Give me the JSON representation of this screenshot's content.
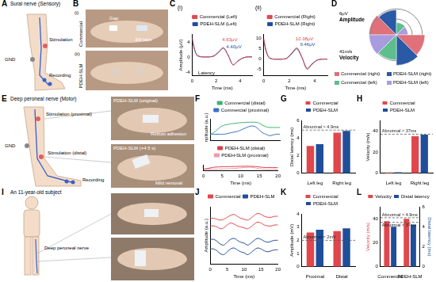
{
  "chart_data": [
    {
      "type": "line",
      "panel": "C",
      "title": "(i)",
      "x": [
        0,
        0.2,
        0.4,
        0.6,
        0.8,
        1.0,
        1.4,
        1.8,
        2.2,
        2.6,
        3.0,
        3.4,
        3.8,
        4.2,
        4.6,
        5.0
      ],
      "series": [
        {
          "name": "Commercial (Left)",
          "color": "#e0474c",
          "values": [
            5,
            2,
            0.5,
            0.2,
            0,
            0,
            0,
            0.3,
            1.4,
            2.5,
            0.5,
            -2.1,
            -1.2,
            -0.3,
            0,
            0
          ]
        },
        {
          "name": "PDEH-SLM (Left)",
          "color": "#1f4e9a",
          "values": [
            4.5,
            1.8,
            0.4,
            0.1,
            0,
            0,
            0,
            0.2,
            1.2,
            2.3,
            0.4,
            -2.1,
            -1.1,
            -0.3,
            0,
            0
          ]
        }
      ],
      "xlim": [
        0,
        5
      ],
      "xticks": [
        0,
        2,
        4
      ],
      "ylim": [
        -5,
        6
      ],
      "yticks": [
        -4,
        0,
        4
      ],
      "x_label": "Time (ms)",
      "y_label": "Amplitude (μV)",
      "annotations": [
        "4.63μV",
        "4.40μV",
        "Latency"
      ],
      "legend": "top",
      "grid": false
    },
    {
      "type": "line",
      "panel": "C",
      "title": "(ii)",
      "x": [
        0,
        0.2,
        0.4,
        0.6,
        0.8,
        1.0,
        1.4,
        1.8,
        2.2,
        2.6,
        3.0,
        3.4,
        3.8,
        4.2,
        4.6,
        5.0
      ],
      "series": [
        {
          "name": "Commercial (Right)",
          "color": "#e0474c",
          "values": [
            10,
            4,
            1,
            0.3,
            0,
            0,
            0,
            0.5,
            3,
            5.5,
            1,
            -4.9,
            -2.5,
            -0.5,
            0,
            0
          ]
        },
        {
          "name": "PDEH-SLM (Right)",
          "color": "#1f4e9a",
          "values": [
            9,
            3.5,
            0.8,
            0.2,
            0,
            0,
            0,
            0.4,
            2.6,
            5,
            0.8,
            -4.4,
            -2.2,
            -0.4,
            0,
            0
          ]
        }
      ],
      "xlim": [
        0,
        5
      ],
      "xticks": [
        0,
        2,
        4
      ],
      "ylim": [
        -8,
        12
      ],
      "yticks": [
        -5,
        0,
        5,
        10
      ],
      "x_label": "Time (ms)",
      "annotations": [
        "10.38μV",
        "9.46μV"
      ],
      "legend": "top",
      "grid": false
    },
    {
      "type": "polarArea",
      "panel": "D",
      "categories": [
        "Amplitude",
        "Velocity"
      ],
      "series": [
        {
          "name": "Commercial (right)",
          "color": "#e0707a",
          "values": [
            10.38,
            45
          ]
        },
        {
          "name": "PDEH-SLM (right)",
          "color": "#2a5aa6",
          "values": [
            9.46,
            48
          ]
        },
        {
          "name": "Commercial (left)",
          "color": "#5cbf8c",
          "values": [
            4.63,
            40
          ]
        },
        {
          "name": "PDEH-SLM (left)",
          "color": "#a89be0",
          "values": [
            4.4,
            43
          ]
        }
      ],
      "rlim": [
        0,
        12
      ],
      "rticks": [
        {
          "value": 6,
          "label": "6μV"
        }
      ],
      "r2lim": [
        0,
        50
      ],
      "r2ticks": [
        {
          "value": 41,
          "label": "41m/s"
        }
      ],
      "legend": "bottom"
    },
    {
      "type": "line",
      "panel": "F",
      "x": [
        0,
        1,
        2,
        3,
        4,
        5,
        6,
        7,
        8,
        9,
        10,
        11,
        12,
        13,
        14,
        15,
        16,
        17,
        18,
        19,
        20
      ],
      "series": [
        {
          "name": "Commercial (distal)",
          "color": "#3cb371",
          "values": [
            0,
            0.1,
            0.3,
            0.5,
            0.6,
            0.65,
            0.7,
            0.72,
            0.75,
            0.77,
            0.78,
            0.8,
            0.8,
            0.8,
            0.75,
            0.6,
            0.5,
            0.45,
            0.45,
            0.45,
            0.45
          ]
        },
        {
          "name": "Commercial (proximal)",
          "color": "#3b6fc4",
          "values": [
            0,
            0,
            0,
            0,
            0,
            0.05,
            0.1,
            0.15,
            0.2,
            0.3,
            0.4,
            0.5,
            0.55,
            0.5,
            0.3,
            0.1,
            0,
            -0.1,
            -0.05,
            0,
            0
          ]
        }
      ],
      "xlim": [
        0,
        20
      ],
      "ylim": [
        -0.4,
        1.0
      ],
      "y_label": "Amplitude (a.u.)",
      "tick_labels": false,
      "legend": "top",
      "grid": false
    },
    {
      "type": "line",
      "panel": "F",
      "x": [
        0,
        1,
        2,
        3,
        4,
        5,
        6,
        7,
        8,
        9,
        10,
        11,
        12,
        13,
        14,
        15,
        16,
        17,
        18,
        19,
        20
      ],
      "series": [
        {
          "name": "PDEH-SLM (distal)",
          "color": "#d6404a",
          "values": [
            0,
            0.15,
            0.35,
            0.5,
            0.55,
            0.6,
            0.62,
            0.64,
            0.66,
            0.68,
            0.7,
            0.72,
            0.72,
            0.7,
            0.65,
            0.55,
            0.45,
            0.4,
            0.4,
            0.4,
            0.4
          ]
        },
        {
          "name": "PDEH-SLM (proximal)",
          "color": "#f29aa8",
          "values": [
            0,
            0,
            0,
            0,
            0.02,
            0.05,
            0.08,
            0.12,
            0.18,
            0.25,
            0.33,
            0.42,
            0.48,
            0.45,
            0.3,
            0.12,
            0.02,
            -0.08,
            -0.04,
            0,
            0
          ]
        }
      ],
      "xlim": [
        0,
        20
      ],
      "xticks": [
        0,
        5,
        10,
        15,
        20
      ],
      "ylim": [
        -0.4,
        1.0
      ],
      "x_label": "Time (ms)",
      "tick_labels": "x",
      "legend": "top",
      "grid": false
    },
    {
      "type": "bar",
      "panel": "G",
      "categories": [
        "Left leg",
        "Right leg"
      ],
      "series": [
        {
          "name": "Commercial",
          "color": "#e0474c",
          "values": [
            3.1,
            4.6
          ]
        },
        {
          "name": "PDEH-SLM",
          "color": "#1f4e9a",
          "values": [
            3.3,
            4.8
          ]
        }
      ],
      "ylim": [
        0,
        6
      ],
      "yticks": [
        0,
        2,
        4,
        6
      ],
      "y_label": "Distal latency (ms)",
      "thresholds": [
        {
          "value": 4.9,
          "label": "Abnormal > 4.9ms"
        }
      ],
      "legend": "top",
      "grid": false
    },
    {
      "type": "bar",
      "panel": "H",
      "categories": [
        "Left leg",
        "Right leg"
      ],
      "series": [
        {
          "name": "Commercial",
          "color": "#e0474c",
          "values": [
            0.8,
            35
          ]
        },
        {
          "name": "PDEH-SLM",
          "color": "#1f4e9a",
          "values": [
            1.0,
            36.5
          ]
        }
      ],
      "ylim": [
        0,
        50
      ],
      "yticks": [
        0,
        20,
        40
      ],
      "y_label": "Velocity (m/s)",
      "thresholds": [
        {
          "value": 37,
          "label": "Abnormal < 37ms"
        }
      ],
      "legend": "top",
      "grid": false
    },
    {
      "type": "line",
      "panel": "J",
      "x": [
        0,
        1,
        2,
        3,
        4,
        5,
        6,
        7,
        8,
        9,
        10,
        11,
        12,
        13,
        14,
        15,
        16,
        17,
        18,
        19,
        20
      ],
      "series": [
        {
          "name": "Commercial",
          "color": "#e0474c",
          "values": [
            0.9,
            0.9,
            0.85,
            0.8,
            0.85,
            0.95,
            1.05,
            1.1,
            1.0,
            0.9,
            0.85,
            0.8,
            0.9,
            1.05,
            1.15,
            1.1,
            1.0,
            0.95,
            0.95,
            1.0,
            1.0
          ]
        },
        {
          "color": "#e0474c",
          "values": [
            0.5,
            0.5,
            0.45,
            0.35,
            0.4,
            0.55,
            0.65,
            0.6,
            0.5,
            0.45,
            0.4,
            0.35,
            0.45,
            0.6,
            0.7,
            0.65,
            0.55,
            0.5,
            0.5,
            0.55,
            0.55
          ]
        },
        {
          "name": "PDEH-SLM",
          "color": "#1f4e9a",
          "values": [
            -0.2,
            -0.2,
            -0.3,
            -0.45,
            -0.5,
            -0.35,
            -0.2,
            -0.15,
            -0.25,
            -0.35,
            -0.4,
            -0.5,
            -0.4,
            -0.25,
            -0.15,
            -0.2,
            -0.3,
            -0.35,
            -0.3,
            -0.25,
            -0.25
          ]
        },
        {
          "color": "#1f4e9a",
          "values": [
            -0.7,
            -0.7,
            -0.8,
            -0.95,
            -1.0,
            -0.85,
            -0.7,
            -0.65,
            -0.75,
            -0.85,
            -0.9,
            -1.0,
            -0.9,
            -0.75,
            -0.65,
            -0.7,
            -0.8,
            -0.85,
            -0.8,
            -0.75,
            -0.75
          ]
        }
      ],
      "xlim": [
        0,
        20
      ],
      "xticks": [
        0,
        5,
        10,
        15,
        20
      ],
      "ylim": [
        -1.5,
        1.5
      ],
      "x_label": "Time (ms)",
      "y_label": "Amplitude (a.u.)",
      "tick_labels": "x",
      "legend": "top",
      "grid": false
    },
    {
      "type": "bar",
      "panel": "K",
      "categories": [
        "Proximal",
        "Distal"
      ],
      "series": [
        {
          "name": "Commercial",
          "color": "#e0474c",
          "values": [
            2.6,
            2.7
          ]
        },
        {
          "name": "PDEH-SLM",
          "color": "#1f4e9a",
          "values": [
            2.8,
            2.9
          ]
        }
      ],
      "ylim": [
        0,
        4
      ],
      "yticks": [
        0,
        1,
        2,
        3,
        4
      ],
      "y_label": "Amplitude (mV)",
      "thresholds": [
        {
          "value": 2,
          "label": "Abnormal < 2mV"
        }
      ],
      "legend": "top",
      "grid": false
    },
    {
      "type": "bar",
      "panel": "L",
      "categories": [
        "Commercial",
        "PDEH-SLM"
      ],
      "series": [
        {
          "name": "Velocity",
          "color": "#e0474c",
          "values": [
            38,
            40
          ]
        },
        {
          "name": "Distal latency",
          "color": "#1f4e9a",
          "values": [
            4.0,
            4.2
          ],
          "axis": "y2"
        }
      ],
      "ylim": [
        0,
        50
      ],
      "yticks": [
        0,
        20,
        40
      ],
      "y_label": "Velocity (m/s)",
      "y2lim": [
        0,
        6
      ],
      "y2ticks": [
        0,
        2,
        4,
        6
      ],
      "y2_label": "Distal latency (ms)",
      "thresholds": [
        {
          "value": 4.9,
          "label": "Abnormal > 4.9ms",
          "axis": "y2"
        },
        {
          "value": 37,
          "label": "Abnormal < 37ms"
        }
      ],
      "legend": "top",
      "grid": false
    }
  ],
  "panels": {
    "A": {
      "letter": "A",
      "title": "Sural nerve (Sensory)",
      "labels": [
        "Stimulation",
        "GND",
        "Recording"
      ]
    },
    "B": {
      "letter": "B",
      "rows": [
        {
          "index": "(i)",
          "label": "Commercial"
        },
        {
          "index": "(ii)",
          "label": "PDEH-SLM"
        }
      ],
      "callouts": [
        "Gap",
        "3M tape"
      ]
    },
    "E": {
      "letter": "E",
      "title": "Deep peroneal nerve (Motor)",
      "labels": [
        "Stimulation (proximal)",
        "GND",
        "Stimulation (distal)",
        "Recording"
      ],
      "photos": [
        {
          "label": "PDEH-SLM (original)",
          "caption": "Robust adhesion"
        },
        {
          "label": "PDEH-SLM (×4 5 s)",
          "caption": "Mild removal"
        }
      ]
    },
    "I": {
      "letter": "I",
      "title": "An 11-year-old subject",
      "labels": [
        "Deep peroneal nerve"
      ]
    }
  }
}
